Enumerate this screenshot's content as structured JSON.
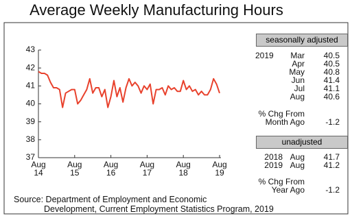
{
  "chart_data": {
    "type": "line",
    "title": "Average Weekly Manufacturing Hours",
    "source": "Source: Department of Employment and Economic\nDevelopment, Current Employment Statistics Program, 2019",
    "categories": [
      "Aug\n14",
      null,
      null,
      null,
      null,
      null,
      null,
      null,
      null,
      null,
      null,
      null,
      "Aug\n15",
      null,
      null,
      null,
      null,
      null,
      null,
      null,
      null,
      null,
      null,
      null,
      "Aug\n16",
      null,
      null,
      null,
      null,
      null,
      null,
      null,
      null,
      null,
      null,
      null,
      "Aug\n17",
      null,
      null,
      null,
      null,
      null,
      null,
      null,
      null,
      null,
      null,
      null,
      "Aug\n18",
      null,
      null,
      null,
      null,
      null,
      null,
      null,
      null,
      null,
      null,
      null,
      "Aug\n19"
    ],
    "values": [
      41.8,
      41.7,
      41.7,
      41.6,
      41.2,
      40.9,
      40.9,
      40.8,
      39.8,
      40.6,
      40.7,
      40.8,
      40.8,
      40.0,
      40.2,
      40.5,
      40.8,
      41.4,
      40.6,
      40.9,
      40.9,
      40.4,
      40.8,
      39.8,
      40.4,
      41.3,
      40.4,
      40.9,
      40.1,
      40.9,
      41.4,
      41.0,
      41.2,
      41.0,
      40.6,
      41.0,
      40.8,
      41.1,
      40.0,
      40.8,
      40.8,
      40.9,
      40.5,
      41.0,
      40.8,
      40.9,
      40.7,
      40.7,
      41.3,
      40.8,
      41.0,
      40.7,
      40.8,
      40.5,
      40.7,
      40.5,
      40.5,
      40.8,
      41.4,
      41.1,
      40.6
    ],
    "color": "#e8412c",
    "ylim": [
      37,
      43
    ],
    "yticks": [
      37,
      38,
      39,
      40,
      41,
      42,
      43
    ]
  },
  "side_panel": {
    "seasonally_adjusted": {
      "title": "seasonally adjusted",
      "year": "2019",
      "rows": [
        {
          "month": "Mar",
          "value": 40.5
        },
        {
          "month": "Apr",
          "value": 40.5
        },
        {
          "month": "May",
          "value": 40.8
        },
        {
          "month": "Jun",
          "value": 41.4
        },
        {
          "month": "Jul",
          "value": 41.1
        },
        {
          "month": "Aug",
          "value": 40.6
        }
      ],
      "change_label": "% Chg From\nMonth Ago",
      "change_value": -1.2
    },
    "unadjusted": {
      "title": "unadjusted",
      "rows": [
        {
          "year": "2018",
          "month": "Aug",
          "value": 41.7
        },
        {
          "year": "2019",
          "month": "Aug",
          "value": 41.2
        }
      ],
      "change_label": "% Chg From\nYear Ago",
      "change_value": -1.2
    }
  }
}
